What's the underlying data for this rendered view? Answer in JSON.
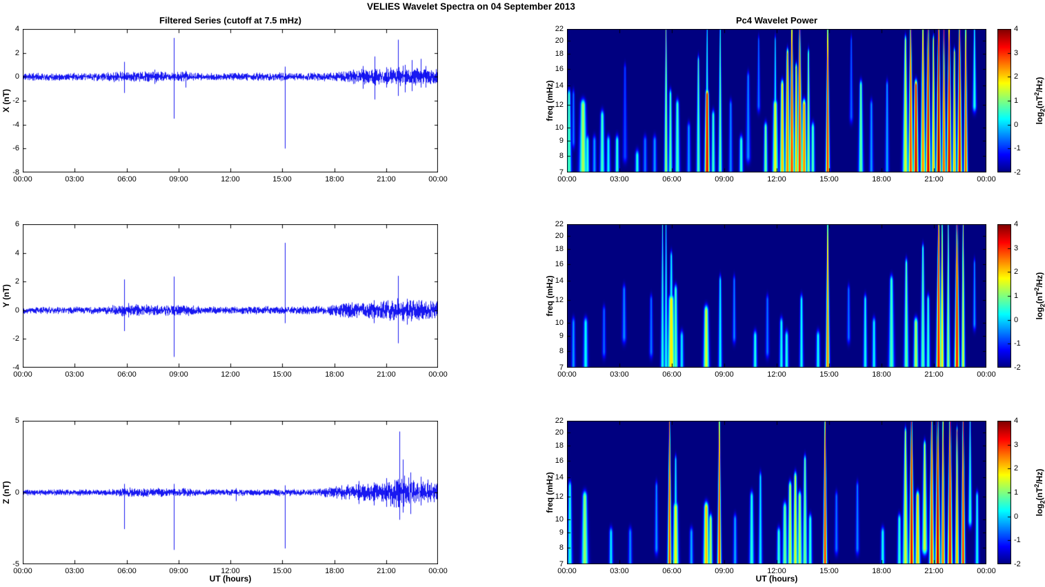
{
  "figure": {
    "title": "VELIES Wavelet Spectra on 04 September 2013",
    "left_title": "Filtered Series (cutoff at 7.5 mHz)",
    "right_title": "Pc4 Wavelet Power",
    "xlabel": "UT (hours)",
    "x_ticks": [
      "00:00",
      "03:00",
      "06:00",
      "09:00",
      "12:00",
      "15:00",
      "18:00",
      "21:00",
      "00:00"
    ],
    "colorbar": {
      "label_prefix": "log",
      "label_sub": "2",
      "label_mid": "(nT",
      "label_sup": "2",
      "label_suffix": "/Hz)",
      "ticks": [
        4,
        3,
        2,
        1,
        0,
        -1,
        -2
      ],
      "min": -2,
      "max": 4,
      "colormap": "jet"
    },
    "colors": {
      "line": "#0000f0",
      "background": "#ffffff",
      "text": "#000000"
    }
  },
  "chart_data": [
    {
      "type": "line",
      "name": "X filtered series",
      "ylabel": "X (nT)",
      "ylim": [
        -8,
        4
      ],
      "yticks": [
        4,
        2,
        0,
        -2,
        -4,
        -6,
        -8
      ],
      "x_hours": [
        0,
        24
      ],
      "seed": 11,
      "noise_envelope": [
        [
          0,
          0.22
        ],
        [
          4.5,
          0.22
        ],
        [
          5.3,
          0.3
        ],
        [
          9.5,
          0.3
        ],
        [
          10.5,
          0.22
        ],
        [
          18.0,
          0.24
        ],
        [
          19.0,
          0.42
        ],
        [
          20.5,
          0.48
        ],
        [
          21.5,
          0.55
        ],
        [
          22.0,
          0.62
        ],
        [
          22.8,
          0.5
        ],
        [
          24,
          0.45
        ]
      ],
      "spikes": [
        [
          5.85,
          1.25,
          -1.35
        ],
        [
          7.6,
          0.6,
          -0.6
        ],
        [
          8.75,
          3.25,
          -3.5
        ],
        [
          9.4,
          0.5,
          -0.9
        ],
        [
          15.15,
          0.85,
          -6.0
        ],
        [
          19.1,
          0.6,
          -0.6
        ],
        [
          19.65,
          0.9,
          -1.0
        ],
        [
          20.35,
          1.7,
          -1.9
        ],
        [
          21.0,
          0.8,
          -0.9
        ],
        [
          21.7,
          3.1,
          -1.6
        ],
        [
          22.1,
          1.0,
          -1.3
        ],
        [
          22.5,
          1.4,
          -1.2
        ],
        [
          23.0,
          1.5,
          -0.9
        ],
        [
          23.3,
          0.9,
          -0.9
        ]
      ]
    },
    {
      "type": "heatmap",
      "name": "X Pc4 wavelet power",
      "ylabel": "freq (mHz)",
      "ylim": [
        7,
        22
      ],
      "yscale": "log",
      "yticks": [
        22,
        20,
        18,
        16,
        14,
        12,
        10,
        9,
        8,
        7
      ],
      "clim": [
        -2,
        4
      ],
      "events": [
        [
          0.1,
          0.05,
          7,
          13,
          0.8
        ],
        [
          0.35,
          0.04,
          9,
          13,
          -0.5
        ],
        [
          0.9,
          0.08,
          7,
          12,
          1.3
        ],
        [
          1.15,
          0.04,
          7,
          9,
          0.6
        ],
        [
          1.55,
          0.04,
          7,
          9,
          -0.3
        ],
        [
          2.0,
          0.05,
          7,
          11,
          0.7
        ],
        [
          2.35,
          0.04,
          7,
          9,
          0.3
        ],
        [
          2.85,
          0.04,
          7,
          9,
          0.6
        ],
        [
          3.3,
          0.05,
          8,
          16,
          -0.8
        ],
        [
          4.0,
          0.04,
          7,
          8,
          0.5
        ],
        [
          4.45,
          0.03,
          7,
          9,
          -0.5
        ],
        [
          5.0,
          0.04,
          7,
          9,
          -0.3
        ],
        [
          5.65,
          0.03,
          7,
          22,
          1.2
        ],
        [
          5.9,
          0.04,
          7,
          13,
          0.8
        ],
        [
          6.3,
          0.05,
          7,
          12,
          0.7
        ],
        [
          6.95,
          0.04,
          7,
          10,
          -0.3
        ],
        [
          7.5,
          0.04,
          7,
          17,
          0.8
        ],
        [
          8.0,
          0.05,
          7,
          13,
          3.6
        ],
        [
          8.0,
          0.04,
          13,
          22,
          0.6
        ],
        [
          8.35,
          0.04,
          7,
          11,
          0.7
        ],
        [
          8.75,
          0.03,
          7,
          22,
          0.9
        ],
        [
          9.35,
          0.04,
          7,
          12,
          -0.4
        ],
        [
          9.95,
          0.04,
          7,
          9,
          0.6
        ],
        [
          10.35,
          0.05,
          8,
          15,
          -0.4
        ],
        [
          10.95,
          0.05,
          12,
          20,
          -0.5
        ],
        [
          11.35,
          0.04,
          7,
          10,
          1.0
        ],
        [
          11.9,
          0.06,
          7,
          12,
          1.7
        ],
        [
          11.9,
          0.04,
          12,
          20,
          0.3
        ],
        [
          12.3,
          0.05,
          7,
          14,
          2.2
        ],
        [
          12.6,
          0.05,
          7,
          18,
          2.6
        ],
        [
          12.85,
          0.05,
          7,
          22,
          3.0
        ],
        [
          13.1,
          0.04,
          7,
          16,
          2.2
        ],
        [
          13.3,
          0.05,
          7,
          22,
          3.1
        ],
        [
          13.55,
          0.05,
          7,
          12,
          2.6
        ],
        [
          13.8,
          0.04,
          7,
          18,
          1.2
        ],
        [
          14.05,
          0.04,
          7,
          10,
          0.8
        ],
        [
          14.9,
          0.035,
          7,
          22,
          3.2
        ],
        [
          16.25,
          0.05,
          11,
          20,
          -0.6
        ],
        [
          16.8,
          0.05,
          7,
          14,
          0.9
        ],
        [
          17.4,
          0.04,
          7,
          12,
          -0.3
        ],
        [
          18.3,
          0.04,
          7,
          14,
          -0.2
        ],
        [
          19.35,
          0.06,
          7,
          20,
          1.6
        ],
        [
          19.65,
          0.05,
          7,
          22,
          3.0
        ],
        [
          19.95,
          0.05,
          7,
          14,
          3.6
        ],
        [
          20.35,
          0.05,
          7,
          22,
          2.6
        ],
        [
          20.65,
          0.05,
          7,
          22,
          3.6
        ],
        [
          20.95,
          0.04,
          7,
          20,
          2.2
        ],
        [
          21.25,
          0.05,
          7,
          22,
          3.9
        ],
        [
          21.55,
          0.04,
          7,
          22,
          3.0
        ],
        [
          21.85,
          0.05,
          7,
          22,
          3.6
        ],
        [
          22.15,
          0.04,
          7,
          18,
          2.3
        ],
        [
          22.45,
          0.05,
          7,
          22,
          3.5
        ],
        [
          22.8,
          0.035,
          7,
          22,
          3.0
        ],
        [
          23.3,
          0.06,
          12,
          22,
          0.5
        ]
      ]
    },
    {
      "type": "line",
      "name": "Y filtered series",
      "ylabel": "Y (nT)",
      "ylim": [
        -4,
        6
      ],
      "yticks": [
        6,
        4,
        2,
        0,
        -2,
        -4
      ],
      "x_hours": [
        0,
        24
      ],
      "seed": 22,
      "noise_envelope": [
        [
          0,
          0.17
        ],
        [
          4.5,
          0.17
        ],
        [
          5.5,
          0.28
        ],
        [
          9.5,
          0.26
        ],
        [
          10.5,
          0.18
        ],
        [
          17.5,
          0.2
        ],
        [
          18.5,
          0.38
        ],
        [
          20.5,
          0.42
        ],
        [
          21.6,
          0.55
        ],
        [
          22.3,
          0.5
        ],
        [
          24,
          0.42
        ]
      ],
      "spikes": [
        [
          5.85,
          2.15,
          -1.45
        ],
        [
          6.1,
          0.5,
          -0.5
        ],
        [
          8.75,
          2.35,
          -3.25
        ],
        [
          15.15,
          4.7,
          -0.9
        ],
        [
          18.8,
          0.5,
          -0.5
        ],
        [
          20.3,
          0.7,
          -0.9
        ],
        [
          21.7,
          2.4,
          -2.3
        ],
        [
          22.2,
          0.8,
          -1.0
        ],
        [
          22.9,
          0.7,
          -0.7
        ],
        [
          23.3,
          0.6,
          -0.6
        ]
      ]
    },
    {
      "type": "heatmap",
      "name": "Y Pc4 wavelet power",
      "ylabel": "freq (mHz)",
      "ylim": [
        7,
        22
      ],
      "yscale": "log",
      "yticks": [
        22,
        20,
        18,
        16,
        14,
        12,
        10,
        9,
        8,
        7
      ],
      "clim": [
        -2,
        4
      ],
      "events": [
        [
          0.35,
          0.04,
          7,
          10,
          -0.3
        ],
        [
          1.05,
          0.05,
          7,
          10,
          0.3
        ],
        [
          2.1,
          0.04,
          8,
          11,
          -0.6
        ],
        [
          3.25,
          0.05,
          9,
          13,
          -0.4
        ],
        [
          4.8,
          0.04,
          8,
          12,
          -0.5
        ],
        [
          5.45,
          0.03,
          7,
          22,
          0.5
        ],
        [
          5.65,
          0.03,
          7,
          22,
          0.4
        ],
        [
          5.95,
          0.08,
          7,
          12,
          1.9
        ],
        [
          5.95,
          0.05,
          12,
          17,
          0.4
        ],
        [
          6.2,
          0.05,
          7,
          13,
          0.8
        ],
        [
          6.55,
          0.04,
          7,
          9,
          0.2
        ],
        [
          7.95,
          0.06,
          7,
          11,
          1.6
        ],
        [
          8.75,
          0.03,
          7,
          14,
          0.3
        ],
        [
          9.55,
          0.04,
          9,
          14,
          -0.4
        ],
        [
          10.75,
          0.04,
          7,
          9,
          0.5
        ],
        [
          11.45,
          0.04,
          8,
          12,
          -0.5
        ],
        [
          12.25,
          0.04,
          7,
          10,
          0.4
        ],
        [
          12.55,
          0.04,
          7,
          9,
          0.5
        ],
        [
          13.4,
          0.04,
          7,
          12,
          0.4
        ],
        [
          14.35,
          0.04,
          7,
          9,
          0.4
        ],
        [
          14.9,
          0.03,
          7,
          22,
          2.6
        ],
        [
          16.1,
          0.04,
          9,
          13,
          -0.5
        ],
        [
          17.05,
          0.04,
          7,
          12,
          0.4
        ],
        [
          17.55,
          0.04,
          7,
          10,
          0.3
        ],
        [
          18.55,
          0.06,
          7,
          14,
          0.7
        ],
        [
          19.4,
          0.05,
          7,
          16,
          0.9
        ],
        [
          19.95,
          0.05,
          7,
          10,
          1.4
        ],
        [
          20.35,
          0.05,
          7,
          18,
          0.8
        ],
        [
          20.65,
          0.04,
          7,
          12,
          0.6
        ],
        [
          21.25,
          0.05,
          7,
          22,
          3.3
        ],
        [
          21.45,
          0.03,
          7,
          22,
          2.0
        ],
        [
          21.8,
          0.04,
          7,
          22,
          1.2
        ],
        [
          22.3,
          0.05,
          7,
          22,
          3.4
        ],
        [
          22.65,
          0.03,
          7,
          22,
          1.6
        ],
        [
          23.3,
          0.04,
          10,
          16,
          -0.3
        ]
      ]
    },
    {
      "type": "line",
      "name": "Z filtered series",
      "ylabel": "Z (nT)",
      "ylim": [
        -5,
        5
      ],
      "yticks": [
        5,
        0,
        -5
      ],
      "x_hours": [
        0,
        24
      ],
      "seed": 33,
      "noise_envelope": [
        [
          0,
          0.14
        ],
        [
          5.0,
          0.15
        ],
        [
          6.0,
          0.24
        ],
        [
          9.5,
          0.2
        ],
        [
          10.5,
          0.15
        ],
        [
          17.0,
          0.17
        ],
        [
          18.0,
          0.3
        ],
        [
          19.5,
          0.42
        ],
        [
          20.8,
          0.5
        ],
        [
          21.6,
          0.75
        ],
        [
          22.0,
          0.85
        ],
        [
          22.5,
          0.6
        ],
        [
          23.2,
          0.5
        ],
        [
          24,
          0.45
        ]
      ],
      "spikes": [
        [
          5.85,
          0.6,
          -2.55
        ],
        [
          8.75,
          0.6,
          -4.0
        ],
        [
          12.3,
          0.3,
          -0.6
        ],
        [
          15.15,
          0.5,
          -3.9
        ],
        [
          18.4,
          0.5,
          -0.5
        ],
        [
          19.4,
          0.8,
          -0.8
        ],
        [
          20.3,
          0.7,
          -0.9
        ],
        [
          21.0,
          1.0,
          -1.0
        ],
        [
          21.75,
          4.25,
          -1.9
        ],
        [
          21.95,
          2.3,
          -1.4
        ],
        [
          22.4,
          1.4,
          -1.5
        ],
        [
          23.0,
          1.1,
          -0.9
        ],
        [
          23.4,
          0.9,
          -0.7
        ]
      ]
    },
    {
      "type": "heatmap",
      "name": "Z Pc4 wavelet power",
      "ylabel": "freq (mHz)",
      "ylim": [
        7,
        22
      ],
      "yscale": "log",
      "yticks": [
        22,
        20,
        18,
        16,
        14,
        12,
        10,
        9,
        8,
        7
      ],
      "clim": [
        -2,
        4
      ],
      "events": [
        [
          0.15,
          0.05,
          7,
          13,
          0.5
        ],
        [
          1.0,
          0.07,
          7,
          12,
          1.2
        ],
        [
          2.5,
          0.04,
          7,
          9,
          0.2
        ],
        [
          3.6,
          0.04,
          7,
          9,
          -0.4
        ],
        [
          5.1,
          0.04,
          8,
          13,
          -0.3
        ],
        [
          5.85,
          0.03,
          7,
          22,
          3.0
        ],
        [
          6.2,
          0.06,
          7,
          11,
          1.8
        ],
        [
          6.2,
          0.04,
          11,
          16,
          0.4
        ],
        [
          7.1,
          0.04,
          7,
          9,
          -0.2
        ],
        [
          7.95,
          0.06,
          7,
          11,
          2.2
        ],
        [
          8.2,
          0.04,
          7,
          10,
          1.4
        ],
        [
          8.7,
          0.03,
          7,
          22,
          3.1
        ],
        [
          9.6,
          0.04,
          7,
          10,
          -0.2
        ],
        [
          10.55,
          0.05,
          7,
          12,
          0.5
        ],
        [
          11.05,
          0.04,
          7,
          14,
          0.2
        ],
        [
          12.1,
          0.04,
          7,
          9,
          0.6
        ],
        [
          12.45,
          0.05,
          7,
          11,
          1.0
        ],
        [
          12.75,
          0.05,
          7,
          13,
          1.5
        ],
        [
          13.05,
          0.05,
          7,
          14,
          1.6
        ],
        [
          13.3,
          0.05,
          7,
          12,
          1.4
        ],
        [
          13.6,
          0.05,
          7,
          16,
          1.0
        ],
        [
          13.9,
          0.04,
          7,
          10,
          0.6
        ],
        [
          14.75,
          0.03,
          7,
          22,
          3.2
        ],
        [
          15.4,
          0.04,
          8,
          12,
          -0.5
        ],
        [
          16.6,
          0.04,
          8,
          13,
          -0.4
        ],
        [
          18.05,
          0.04,
          7,
          9,
          0.4
        ],
        [
          19.0,
          0.04,
          7,
          10,
          0.6
        ],
        [
          19.35,
          0.06,
          7,
          20,
          1.6
        ],
        [
          19.7,
          0.05,
          7,
          22,
          3.5
        ],
        [
          20.05,
          0.05,
          7,
          12,
          2.2
        ],
        [
          20.45,
          0.06,
          8,
          18,
          1.6
        ],
        [
          20.85,
          0.05,
          7,
          22,
          3.0
        ],
        [
          21.2,
          0.05,
          7,
          22,
          3.8
        ],
        [
          21.5,
          0.04,
          7,
          22,
          2.8
        ],
        [
          21.9,
          0.05,
          7,
          22,
          3.5
        ],
        [
          22.3,
          0.04,
          7,
          20,
          2.4
        ],
        [
          22.65,
          0.04,
          7,
          22,
          3.2
        ],
        [
          23.05,
          0.05,
          10,
          22,
          0.6
        ],
        [
          23.45,
          0.04,
          7,
          12,
          0.4
        ]
      ]
    }
  ]
}
